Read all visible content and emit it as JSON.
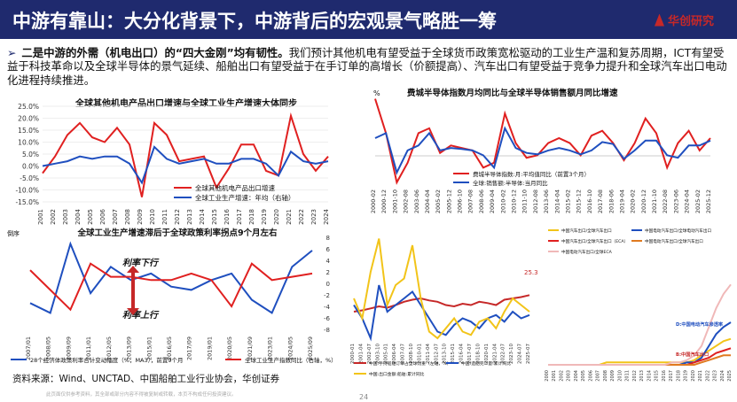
{
  "header": {
    "title": "中游有靠山：大分化背景下，中游背后的宏观景气略胜一筹",
    "logo_text": "华创研究"
  },
  "bullet": {
    "lead": "二是中游的外需（机电出口）的“四大金刚”均有韧性。",
    "body": "我们预计其他机电有望受益于全球货币政策宽松驱动的工业生产温和复苏周期，ICT有望受益于科技革命以及全球半导体的景气延续、船舶出口有望受益于在手订单的高增长（价额提高）、汽车出口有望受益于竞争力提升和全球汽车出口电动化进程持续推进。"
  },
  "footer": {
    "source": "资料来源：Wind、UNCTAD、中国船舶工业行业协会，华创证券",
    "disclaimer": "此页面仅供参考资料，其全部或部分内容不得被复制或转载，本页不构成任何投资建议。",
    "page": "24"
  },
  "chart_data": [
    {
      "type": "line",
      "title": "全球其他机电产品出口增速与全球工业生产增速大体同步",
      "x": [
        2001,
        2002,
        2003,
        2004,
        2005,
        2006,
        2007,
        2008,
        2009,
        2010,
        2011,
        2012,
        2013,
        2014,
        2015,
        2016,
        2017,
        2018,
        2019,
        2020,
        2021,
        2022,
        2023,
        2024
      ],
      "ylim": [
        -15,
        25
      ],
      "yticks": [
        "25.0%",
        "20.0%",
        "15.0%",
        "10.0%",
        "5.0%",
        "0.0%",
        "-5.0%",
        "-10.0%",
        "-15.0%"
      ],
      "series": [
        {
          "name": "全球其他机电产品出口增速",
          "color": "#e02020",
          "values": [
            -3,
            4,
            13,
            18,
            12,
            10,
            16,
            9,
            -13,
            18,
            13,
            2,
            3,
            4,
            -9,
            -1,
            9,
            9,
            -2,
            -4,
            21,
            5,
            -2,
            4
          ]
        },
        {
          "name": "全球工业生产增速：年均（右轴）",
          "color": "#1f4fbf",
          "values": [
            0,
            1,
            2,
            4,
            3,
            4,
            4,
            1,
            -7,
            8,
            3,
            1,
            2,
            3,
            1,
            1,
            3,
            3,
            1,
            -4,
            6,
            2,
            1,
            2
          ]
        }
      ]
    },
    {
      "type": "line",
      "title": "费城半导体指数月均同比与全球半导体销售额月同比增速",
      "ylabel": "%",
      "x": [
        "2000-02",
        "2000-12",
        "2001-10",
        "2002-08",
        "2003-06",
        "2004-04",
        "2005-02",
        "2005-12",
        "2006-10",
        "2007-08",
        "2008-06",
        "2009-04",
        "2010-02",
        "2010-12",
        "2011-10",
        "2012-08",
        "2013-06",
        "2014-04",
        "2015-02",
        "2015-12",
        "2016-10",
        "2017-08",
        "2018-06",
        "2019-04",
        "2020-02",
        "2020-12",
        "2021-10",
        "2022-08",
        "2023-06",
        "2024-04",
        "2025-02",
        "2025-12"
      ],
      "series": [
        {
          "name": "费城半导体指数:月:平均值同比（前置3个月）",
          "color": "#e02020",
          "values": [
            110,
            40,
            -60,
            -20,
            40,
            50,
            0,
            15,
            10,
            5,
            -30,
            -20,
            80,
            20,
            -10,
            -5,
            20,
            30,
            20,
            -5,
            35,
            45,
            20,
            -15,
            20,
            70,
            40,
            -30,
            20,
            45,
            5,
            30
          ]
        },
        {
          "name": "全球:销售额:半导体:当月同比",
          "color": "#1f4fbf",
          "values": [
            30,
            40,
            -40,
            5,
            15,
            40,
            5,
            10,
            8,
            5,
            -5,
            -30,
            50,
            10,
            0,
            -3,
            5,
            10,
            5,
            -3,
            5,
            22,
            18,
            -12,
            5,
            25,
            25,
            -5,
            -10,
            15,
            15,
            25
          ]
        }
      ]
    },
    {
      "type": "line",
      "title": "全球工业生产增速滞后于全球政策利率拐点9个月左右",
      "ylabel": "倒序",
      "x": [
        "2007/01",
        "2008/05",
        "2009/09",
        "2011/01",
        "2012/05",
        "2013/09",
        "2015/01",
        "2016/05",
        "2017/09",
        "2019/01",
        "2020/05",
        "2021/09",
        "2023/01",
        "2024/05",
        "2025/09"
      ],
      "ylim": [
        -8,
        8
      ],
      "series": [
        {
          "name": "28个经济体政策利率合计变动幅度（%，MA3），前置9个月",
          "color": "#1f4fbf",
          "values": [
            -6,
            -9,
            12,
            -3,
            5,
            1,
            3,
            -1,
            -2,
            1,
            3,
            -5,
            -9,
            5,
            10
          ]
        },
        {
          "name": "全球工业生产指数同比（右轴，%）",
          "color": "#e02020",
          "values": [
            4,
            -2,
            -8,
            6,
            2,
            2,
            1,
            1,
            3,
            1,
            -7,
            6,
            1,
            2,
            3
          ]
        }
      ],
      "annotations": [
        "利率下行",
        "利率上行"
      ]
    },
    {
      "type": "line",
      "ylim": [
        -20,
        140
      ],
      "x": [
        "2000-01",
        "2001-04",
        "2002-07",
        "2003-10",
        "2005-01",
        "2006-04",
        "2007-07",
        "2008-10",
        "2010-01",
        "2011-04",
        "2012-07",
        "2013-10",
        "2015-01",
        "2016-04",
        "2017-07",
        "2018-10",
        "2020-01",
        "2021-04",
        "2022-07",
        "2023-10",
        "2024-07",
        "2025-07"
      ],
      "series": [
        {
          "name": "中国:手持船舶订单占全球比重（左轴，%）",
          "color": "#c62828",
          "values": [
            20,
            22,
            25,
            28,
            26,
            30,
            35,
            38,
            40,
            37,
            35,
            30,
            28,
            32,
            30,
            35,
            33,
            30,
            38,
            40,
            42,
            45
          ]
        },
        {
          "name": "中国:造船完工量:累计同比",
          "color": "#1f4fbf",
          "values": [
            30,
            10,
            -20,
            60,
            20,
            30,
            40,
            50,
            30,
            10,
            -10,
            -15,
            0,
            10,
            5,
            -5,
            10,
            15,
            5,
            20,
            10,
            15
          ]
        },
        {
          "name": "中国:出口金额:船舶:累计同比",
          "color": "#f2c419",
          "values": [
            40,
            10,
            80,
            130,
            30,
            60,
            70,
            120,
            40,
            -10,
            -20,
            -5,
            10,
            -10,
            -15,
            5,
            10,
            -5,
            20,
            40,
            30,
            20
          ]
        }
      ],
      "point_label": "25.3"
    },
    {
      "type": "area",
      "x": [
        "2000",
        "2001",
        "2002",
        "2003",
        "2004",
        "2005",
        "2006",
        "2007",
        "2008",
        "2009",
        "2010",
        "2011",
        "2012",
        "2013",
        "2014",
        "2015",
        "2016",
        "2017",
        "2018",
        "2019",
        "2020",
        "2021",
        "2022",
        "2023",
        "2024",
        "2025"
      ],
      "series": [
        {
          "name": "中国汽车出口/全球汽车出口",
          "color": "#f2c419",
          "values": [
            0,
            0,
            0,
            0,
            0,
            0,
            0,
            0,
            1,
            1,
            1,
            1,
            1,
            1,
            1,
            1,
            1,
            1,
            1,
            1,
            2,
            4,
            6,
            8,
            10,
            11
          ]
        },
        {
          "name": "中国电动汽车出口/全球电动汽车出口",
          "color": "#1f4fbf",
          "values": [
            0,
            0,
            0,
            0,
            0,
            0,
            0,
            0,
            0,
            0,
            0,
            0,
            0,
            0,
            0,
            0,
            0,
            0,
            0,
            1,
            1,
            3,
            8,
            13,
            16,
            18
          ]
        },
        {
          "name": "中国汽车出口/全球汽车出口（ECA）",
          "color": "#e02020",
          "values": [
            0,
            0,
            0,
            0,
            0,
            0,
            0,
            0,
            0,
            0,
            0,
            0,
            0,
            0,
            0,
            0,
            0,
            0,
            0,
            0,
            1,
            2,
            3,
            5,
            6,
            7
          ]
        },
        {
          "name": "中国电动汽车出口/全球汽车出口",
          "color": "#e07a20",
          "values": [
            0,
            0,
            0,
            0,
            0,
            0,
            0,
            0,
            0,
            0,
            0,
            0,
            0,
            0,
            0,
            0,
            0,
            0,
            0,
            0,
            0,
            1,
            2,
            3,
            4,
            4
          ]
        },
        {
          "name": "中国电动汽车出口/全球ECA",
          "color": "#f0b8b8",
          "values": [
            0,
            0,
            0,
            0,
            0,
            0,
            0,
            0,
            0,
            0,
            0,
            0,
            0,
            0,
            0,
            0,
            0,
            1,
            1,
            2,
            4,
            8,
            16,
            24,
            30,
            34
          ]
        }
      ],
      "annotations": [
        "D:中国电动汽车渗透率",
        "B:中国汽车出口"
      ]
    }
  ]
}
